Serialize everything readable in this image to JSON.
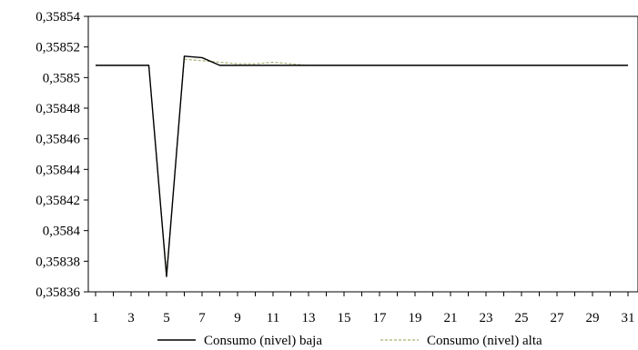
{
  "chart_data": {
    "type": "line",
    "x": [
      1,
      2,
      3,
      4,
      5,
      6,
      7,
      8,
      9,
      10,
      11,
      12,
      13,
      14,
      15,
      16,
      17,
      18,
      19,
      20,
      21,
      22,
      23,
      24,
      25,
      26,
      27,
      28,
      29,
      30,
      31
    ],
    "x_tick_labels": [
      "1",
      "3",
      "5",
      "7",
      "9",
      "11",
      "13",
      "15",
      "17",
      "19",
      "21",
      "23",
      "25",
      "27",
      "29",
      "31"
    ],
    "y_tick_labels": [
      "0,35836",
      "0,35838",
      "0,3584",
      "0,35842",
      "0,35844",
      "0,35846",
      "0,35848",
      "0,3585",
      "0,35852",
      "0,35854"
    ],
    "ylim": [
      0.35836,
      0.35854
    ],
    "xlim": [
      1,
      31
    ],
    "grid": false,
    "legend_position": "bottom",
    "series": [
      {
        "name": "Consumo (nivel) baja",
        "color": "#000000",
        "style": "solid",
        "values": [
          0.358508,
          0.358508,
          0.358508,
          0.358508,
          0.35837,
          0.358514,
          0.358513,
          0.358508,
          0.358508,
          0.358508,
          0.358508,
          0.358508,
          0.358508,
          0.358508,
          0.358508,
          0.358508,
          0.358508,
          0.358508,
          0.358508,
          0.358508,
          0.358508,
          0.358508,
          0.358508,
          0.358508,
          0.358508,
          0.358508,
          0.358508,
          0.358508,
          0.358508,
          0.358508,
          0.358508
        ]
      },
      {
        "name": "Consumo (nivel) alta",
        "color": "#a8b070",
        "style": "dashed",
        "values": [
          0.358508,
          0.358508,
          0.358508,
          0.358508,
          0.358372,
          0.358512,
          0.358511,
          0.35851,
          0.358509,
          0.358509,
          0.35851,
          0.358509,
          0.358508,
          0.358508,
          0.358508,
          0.358508,
          0.358508,
          0.358508,
          0.358508,
          0.358508,
          0.358508,
          0.358508,
          0.358508,
          0.358508,
          0.358508,
          0.358508,
          0.358508,
          0.358508,
          0.358508,
          0.358508,
          0.358508
        ]
      }
    ]
  }
}
